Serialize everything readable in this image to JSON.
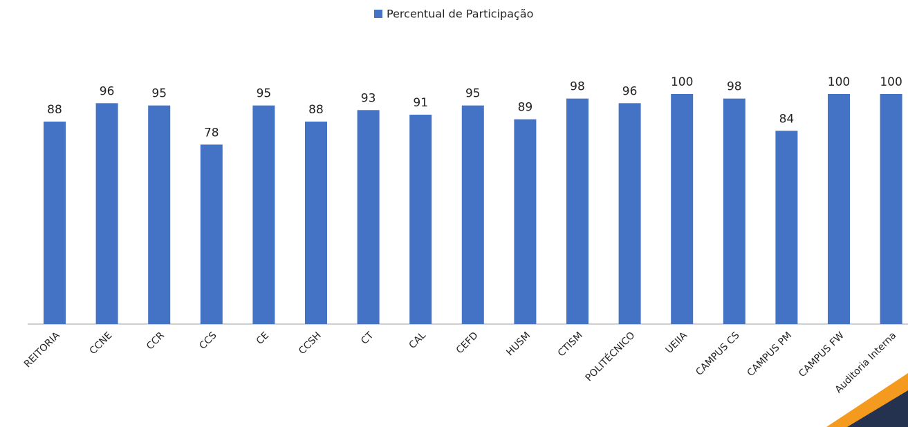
{
  "chart_data": {
    "type": "bar",
    "legend": "Percentual de Participação",
    "categories": [
      "REITORIA",
      "CCNE",
      "CCR",
      "CCS",
      "CE",
      "CCSH",
      "CT",
      "CAL",
      "CEFD",
      "HUSM",
      "CTISM",
      "POLITÉCNICO",
      "UEIIA",
      "CAMPUS CS",
      "CAMPUS PM",
      "CAMPUS FW",
      "Auditoria Interna"
    ],
    "values": [
      88,
      96,
      95,
      78,
      95,
      88,
      93,
      91,
      95,
      89,
      98,
      96,
      100,
      98,
      84,
      100,
      100
    ],
    "color": "#4472c4"
  }
}
